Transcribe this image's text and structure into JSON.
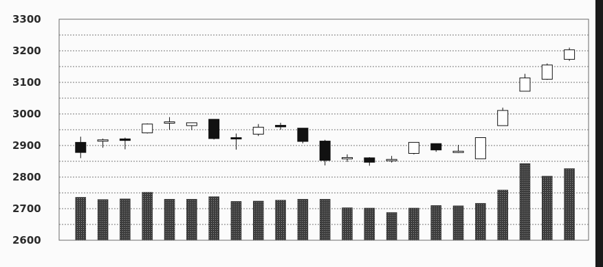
{
  "chart_data": {
    "type": "candlestick",
    "title": "",
    "xlabel": "",
    "ylabel": "",
    "ylim": [
      2600,
      3300
    ],
    "yticks": [
      "3300",
      "3200",
      "3100",
      "3000",
      "2900",
      "2800",
      "2700",
      "2600"
    ],
    "grid": true,
    "legend": "none",
    "colors": {
      "up": "#ffffff",
      "down": "#111111",
      "volume": "#3c3c3c",
      "grid": "#777777"
    },
    "candles": [
      {
        "open": 2910,
        "high": 2928,
        "low": 2860,
        "close": 2878
      },
      {
        "open": 2914,
        "high": 2922,
        "low": 2893,
        "close": 2918
      },
      {
        "open": 2921,
        "high": 2925,
        "low": 2888,
        "close": 2916
      },
      {
        "open": 2940,
        "high": 2970,
        "low": 2938,
        "close": 2968
      },
      {
        "open": 2974,
        "high": 2990,
        "low": 2950,
        "close": 2975
      },
      {
        "open": 2963,
        "high": 2972,
        "low": 2949,
        "close": 2972
      },
      {
        "open": 2983,
        "high": 2983,
        "low": 2919,
        "close": 2922
      },
      {
        "open": 2925,
        "high": 2938,
        "low": 2887,
        "close": 2923
      },
      {
        "open": 2936,
        "high": 2968,
        "low": 2930,
        "close": 2958
      },
      {
        "open": 2964,
        "high": 2972,
        "low": 2950,
        "close": 2959
      },
      {
        "open": 2955,
        "high": 2955,
        "low": 2907,
        "close": 2913
      },
      {
        "open": 2914,
        "high": 2918,
        "low": 2837,
        "close": 2853
      },
      {
        "open": 2860,
        "high": 2872,
        "low": 2848,
        "close": 2862
      },
      {
        "open": 2861,
        "high": 2863,
        "low": 2836,
        "close": 2847
      },
      {
        "open": 2852,
        "high": 2867,
        "low": 2846,
        "close": 2856
      },
      {
        "open": 2875,
        "high": 2910,
        "low": 2872,
        "close": 2910
      },
      {
        "open": 2906,
        "high": 2906,
        "low": 2880,
        "close": 2886
      },
      {
        "open": 2881,
        "high": 2902,
        "low": 2876,
        "close": 2882
      },
      {
        "open": 2858,
        "high": 2925,
        "low": 2858,
        "close": 2925
      },
      {
        "open": 2963,
        "high": 3020,
        "low": 2963,
        "close": 3011
      },
      {
        "open": 3072,
        "high": 3127,
        "low": 3072,
        "close": 3114
      },
      {
        "open": 3110,
        "high": 3160,
        "low": 3108,
        "close": 3155
      },
      {
        "open": 3173,
        "high": 3210,
        "low": 3168,
        "close": 3203
      }
    ],
    "volume_bars": [
      2736,
      2729,
      2731,
      2752,
      2730,
      2730,
      2738,
      2723,
      2724,
      2727,
      2730,
      2730,
      2703,
      2702,
      2688,
      2702,
      2710,
      2709,
      2717,
      2759,
      2843,
      2803,
      2827
    ]
  }
}
